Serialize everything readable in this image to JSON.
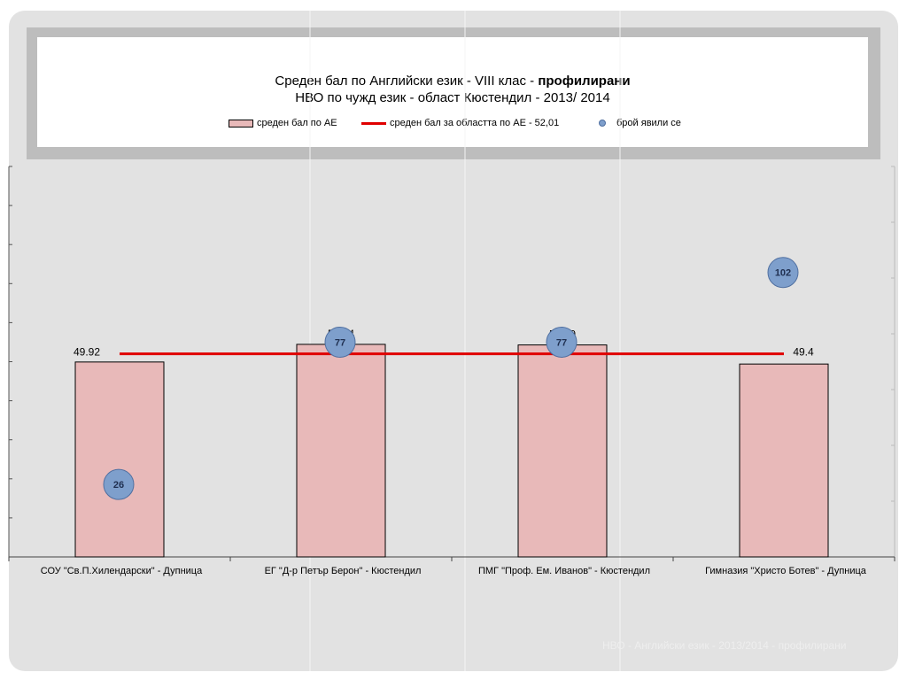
{
  "title": {
    "line1_prefix": "Среден бал по Английски език - VIII клас - ",
    "line1_bold": "профилирани",
    "line2": "НВО по чужд език - област Кюстендил - 2013/ 2014"
  },
  "legend": {
    "bar": "среден бал по АЕ",
    "line": "среден бал за областта по АЕ - 52,01",
    "dot": "брой явили се"
  },
  "footer": "НВО - Английски език - 2013/2014 - профилирани",
  "colors": {
    "bar_fill": "#e8b9b9",
    "line": "#e00000",
    "dot_fill": "#7e9fcc",
    "dot_stroke": "#4f6fa0",
    "background": "#e2e2e2"
  },
  "chart_data": {
    "type": "bar",
    "categories": [
      "СОУ \"Св.П.Хилендарски\" - Дупница",
      "ЕГ \"Д-р Петър Берон\" - Кюстендил",
      "ПМГ \"Проф. Ем. Иванов\" - Кюстендил",
      "Гимназия \"Христо Ботев\" - Дупница"
    ],
    "series": [
      {
        "name": "среден бал по АЕ",
        "kind": "bar",
        "values": [
          49.92,
          54.44,
          54.29,
          49.4
        ],
        "labels": [
          "49.92",
          "54.44",
          "54.29",
          "49.4"
        ]
      },
      {
        "name": "среден бал за областта по АЕ - 52,01",
        "kind": "line",
        "value": 52.01
      },
      {
        "name": "брой явили се",
        "kind": "bubble",
        "values": [
          26,
          77,
          77,
          102
        ]
      }
    ],
    "ylim": [
      0,
      100
    ],
    "count_ylim": [
      0,
      140
    ],
    "grid": false,
    "legend_position": "top"
  }
}
